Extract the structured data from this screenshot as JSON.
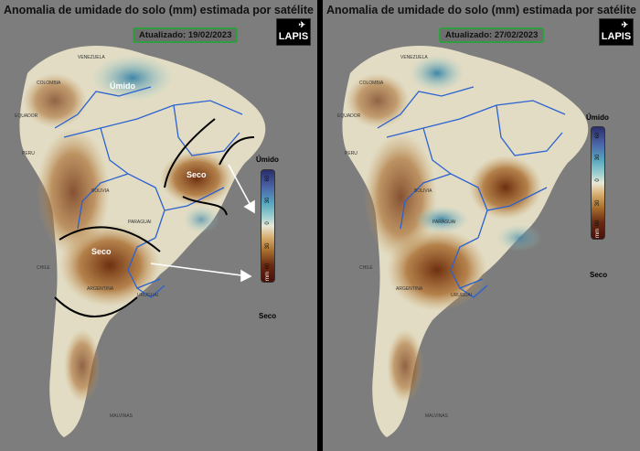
{
  "panels": [
    {
      "title": "Anomalia de umidade do solo (mm) estimada por satélite",
      "updated": "Atualizado: 19/02/2023",
      "logo": "LAPIS",
      "legend": {
        "top_label": "Úmido",
        "bottom_label": "Seco",
        "ticks": [
          "60",
          "30",
          "0",
          "30",
          "60",
          "mm"
        ]
      },
      "annotations": [
        "Úmido",
        "Seco",
        "Seco"
      ],
      "map_labels": [
        "ARGENTINA",
        "URUGUAI",
        "BOLIVIA",
        "PARAGUAI",
        "PERU",
        "CHILE",
        "COLOMBIA",
        "VENEZUELA",
        "EQUADOR",
        "MALVINAS"
      ]
    },
    {
      "title": "Anomalia de umidade do solo (mm) estimada por satélite",
      "updated": "Atualizado: 27/02/2023",
      "logo": "LAPIS",
      "legend": {
        "top_label": "Úmido",
        "bottom_label": "Seco",
        "ticks": [
          "60",
          "30",
          "0",
          "30",
          "60",
          "mm"
        ]
      },
      "map_labels": [
        "ARGENTINA",
        "URUGUAI",
        "BOLIVIA",
        "PARAGUAI",
        "PERU",
        "CHILE",
        "COLOMBIA",
        "VENEZUELA",
        "EQUADOR",
        "MALVINAS"
      ]
    }
  ],
  "colors": {
    "wet": "#3f86a8",
    "dry": "#7a3c14",
    "neutral": "#e4e0c8",
    "border": "#2a62d0",
    "frame": "#2e9e3e"
  }
}
